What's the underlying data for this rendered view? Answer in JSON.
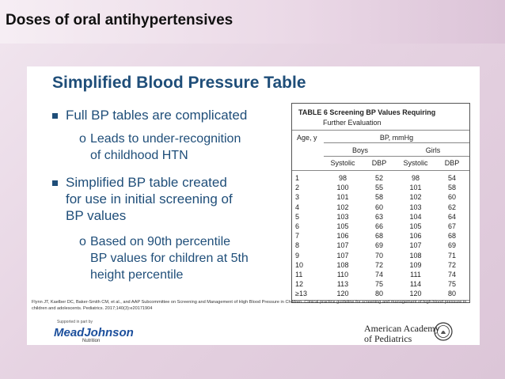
{
  "slide_title": "Doses of oral antihypertensives",
  "card_title": "Simplified Blood Pressure Table",
  "bullets": [
    {
      "text": "Full BP tables are complicated",
      "sub": [
        "Leads to under-recognition",
        "of childhood HTN"
      ]
    },
    {
      "lines": [
        "Simplified BP table created",
        "for use in initial screening of",
        "BP values"
      ],
      "sub": [
        "Based on 90th percentile",
        "BP values for children at 5th",
        "height percentile"
      ]
    }
  ],
  "table": {
    "caption": "TABLE 6 Screening BP Values Requiring",
    "caption2": "Further Evaluation",
    "age_header": "Age, y",
    "unit_header": "BP, mmHg",
    "groups": [
      "Boys",
      "Girls"
    ],
    "subheaders": [
      "Systolic",
      "DBP",
      "Systolic",
      "DBP"
    ],
    "rows": [
      [
        "1",
        "98",
        "52",
        "98",
        "54"
      ],
      [
        "2",
        "100",
        "55",
        "101",
        "58"
      ],
      [
        "3",
        "101",
        "58",
        "102",
        "60"
      ],
      [
        "4",
        "102",
        "60",
        "103",
        "62"
      ],
      [
        "5",
        "103",
        "63",
        "104",
        "64"
      ],
      [
        "6",
        "105",
        "66",
        "105",
        "67"
      ],
      [
        "7",
        "106",
        "68",
        "106",
        "68"
      ],
      [
        "8",
        "107",
        "69",
        "107",
        "69"
      ],
      [
        "9",
        "107",
        "70",
        "108",
        "71"
      ],
      [
        "10",
        "108",
        "72",
        "109",
        "72"
      ],
      [
        "11",
        "110",
        "74",
        "111",
        "74"
      ],
      [
        "12",
        "113",
        "75",
        "114",
        "75"
      ],
      [
        "≥13",
        "120",
        "80",
        "120",
        "80"
      ]
    ]
  },
  "citation": "Flynn JT, Kaelber DC, Baker-Smith CM, et al., and AAP Subcommittee on Screening and Management of High Blood Pressure in Children. Clinical practice guideline for screening and management of high blood pressure in children and adolescents. Pediatrics. 2017;140(3):e20171904",
  "support_text": "Supported in part by",
  "sponsor": {
    "name": "MeadJohnson",
    "sub": "Nutrition"
  },
  "aap": [
    "American Academy",
    "of Pediatrics"
  ]
}
